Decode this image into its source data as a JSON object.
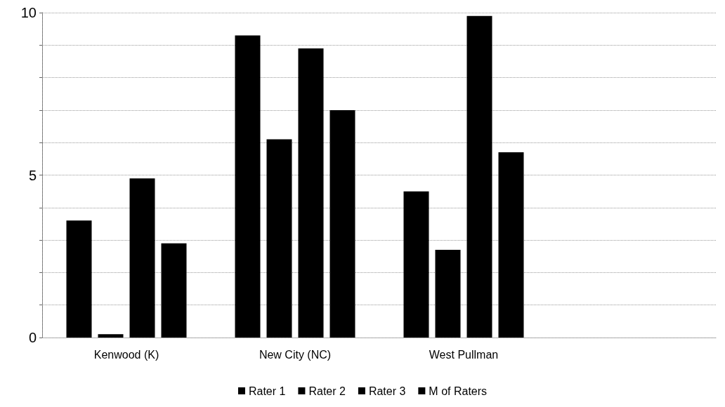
{
  "chart_data": {
    "type": "bar",
    "categories": [
      "Kenwood (K)",
      "New City (NC)",
      "West Pullman",
      null
    ],
    "series": [
      {
        "name": "Rater 1",
        "color": "#000000",
        "values": [
          3.6,
          9.3,
          4.5,
          null
        ]
      },
      {
        "name": "Rater 2",
        "color": "#000000",
        "values": [
          0.1,
          6.1,
          2.7,
          null
        ]
      },
      {
        "name": "Rater 3",
        "color": "#000000",
        "values": [
          4.9,
          8.9,
          9.9,
          null
        ]
      },
      {
        "name": "M of Raters",
        "color": "#000000",
        "values": [
          2.9,
          7.0,
          5.7,
          null
        ]
      }
    ],
    "ylim": [
      0,
      10
    ],
    "yticks": [
      0,
      {
        "value": 1,
        "label": null
      },
      {
        "value": 2,
        "label": null
      },
      {
        "value": 3,
        "label": null
      },
      {
        "value": 4,
        "label": null
      },
      5,
      {
        "value": 6,
        "label": null
      },
      {
        "value": 7,
        "label": null
      },
      {
        "value": 8,
        "label": null
      },
      {
        "value": 9,
        "label": null
      },
      10
    ],
    "grid": "y",
    "legend": "bottom"
  }
}
